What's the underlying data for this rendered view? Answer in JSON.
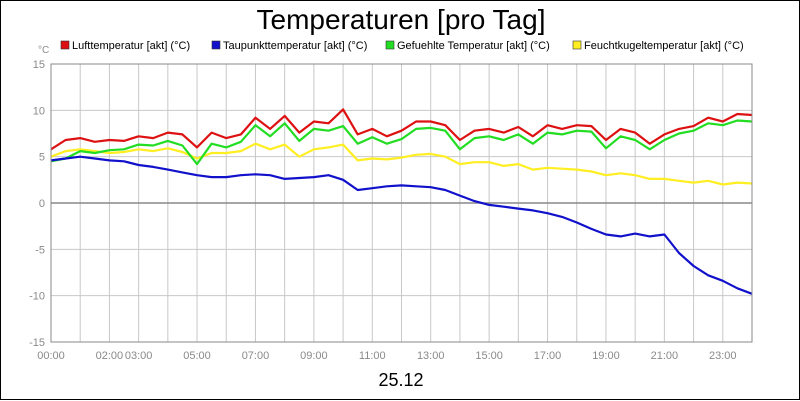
{
  "chart_data": {
    "type": "line",
    "title": "Temperaturen [pro Tag]",
    "ylabel": "°C",
    "xlabel": "25.12",
    "ylim": [
      -15,
      15
    ],
    "xlim": [
      0,
      24
    ],
    "grid": true,
    "legend_position": "top",
    "y_ticks": [
      "15",
      "10",
      "5",
      "0",
      "-5",
      "-10",
      "-15"
    ],
    "x_ticks": [
      {
        "x": 0,
        "label": "00:00"
      },
      {
        "x": 2,
        "label": "02:00"
      },
      {
        "x": 3,
        "label": "03:00"
      },
      {
        "x": 5,
        "label": "05:00"
      },
      {
        "x": 7,
        "label": "07:00"
      },
      {
        "x": 9,
        "label": "09:00"
      },
      {
        "x": 11,
        "label": "11:00"
      },
      {
        "x": 13,
        "label": "13:00"
      },
      {
        "x": 15,
        "label": "15:00"
      },
      {
        "x": 17,
        "label": "17:00"
      },
      {
        "x": 19,
        "label": "19:00"
      },
      {
        "x": 21,
        "label": "21:00"
      },
      {
        "x": 23,
        "label": "23:00"
      }
    ],
    "x_hours": [
      0,
      0.5,
      1,
      1.5,
      2,
      2.5,
      3,
      3.5,
      4,
      4.5,
      5,
      5.5,
      6,
      6.5,
      7,
      7.5,
      8,
      8.5,
      9,
      9.5,
      10,
      10.5,
      11,
      11.5,
      12,
      12.5,
      13,
      13.5,
      14,
      14.5,
      15,
      15.5,
      16,
      16.5,
      17,
      17.5,
      18,
      18.5,
      19,
      19.5,
      20,
      20.5,
      21,
      21.5,
      22,
      22.5,
      23,
      23.5,
      24
    ],
    "series": [
      {
        "name": "Lufttemperatur [akt] (°C)",
        "color": "#dd1111",
        "values": [
          5.8,
          6.8,
          7.0,
          6.6,
          6.8,
          6.7,
          7.2,
          7.0,
          7.6,
          7.4,
          6.0,
          7.6,
          7.0,
          7.4,
          9.2,
          8.0,
          9.4,
          7.6,
          8.8,
          8.6,
          10.1,
          7.4,
          8.0,
          7.2,
          7.8,
          8.8,
          8.8,
          8.4,
          6.8,
          7.8,
          8.0,
          7.6,
          8.2,
          7.2,
          8.4,
          8.0,
          8.4,
          8.3,
          6.8,
          8.0,
          7.6,
          6.4,
          7.4,
          8.0,
          8.3,
          9.2,
          8.8,
          9.6,
          9.5
        ]
      },
      {
        "name": "Taupunkttemperatur [akt] (°C)",
        "color": "#1111cc",
        "values": [
          4.6,
          4.8,
          5.0,
          4.8,
          4.6,
          4.5,
          4.1,
          3.9,
          3.6,
          3.3,
          3.0,
          2.8,
          2.8,
          3.0,
          3.1,
          3.0,
          2.6,
          2.7,
          2.8,
          3.0,
          2.5,
          1.4,
          1.6,
          1.8,
          1.9,
          1.8,
          1.7,
          1.4,
          0.8,
          0.2,
          -0.2,
          -0.4,
          -0.6,
          -0.8,
          -1.1,
          -1.5,
          -2.1,
          -2.8,
          -3.4,
          -3.6,
          -3.3,
          -3.6,
          -3.4,
          -5.4,
          -6.8,
          -7.8,
          -8.4,
          -9.2,
          -9.8
        ]
      },
      {
        "name": "Gefuehlte Temperatur [akt] (°C)",
        "color": "#22dd22",
        "values": [
          4.5,
          4.8,
          5.6,
          5.4,
          5.7,
          5.8,
          6.3,
          6.2,
          6.7,
          6.2,
          4.2,
          6.4,
          6.0,
          6.6,
          8.4,
          7.2,
          8.6,
          6.7,
          8.0,
          7.8,
          8.3,
          6.4,
          7.1,
          6.4,
          6.9,
          8.0,
          8.1,
          7.8,
          5.8,
          7.0,
          7.2,
          6.8,
          7.4,
          6.4,
          7.6,
          7.4,
          7.8,
          7.7,
          5.9,
          7.2,
          6.8,
          5.8,
          6.8,
          7.5,
          7.8,
          8.6,
          8.4,
          8.9,
          8.8
        ]
      },
      {
        "name": "Feuchtkugeltemperatur [akt] (°C)",
        "color": "#ffee22",
        "values": [
          5.0,
          5.6,
          5.8,
          5.6,
          5.4,
          5.5,
          5.8,
          5.6,
          5.9,
          5.5,
          4.8,
          5.4,
          5.4,
          5.6,
          6.4,
          5.8,
          6.3,
          5.0,
          5.8,
          6.0,
          6.3,
          4.6,
          4.8,
          4.7,
          4.9,
          5.2,
          5.3,
          5.0,
          4.2,
          4.4,
          4.4,
          4.0,
          4.2,
          3.6,
          3.8,
          3.7,
          3.6,
          3.4,
          3.0,
          3.2,
          3.0,
          2.6,
          2.6,
          2.4,
          2.2,
          2.4,
          2.0,
          2.2,
          2.1
        ]
      }
    ]
  }
}
